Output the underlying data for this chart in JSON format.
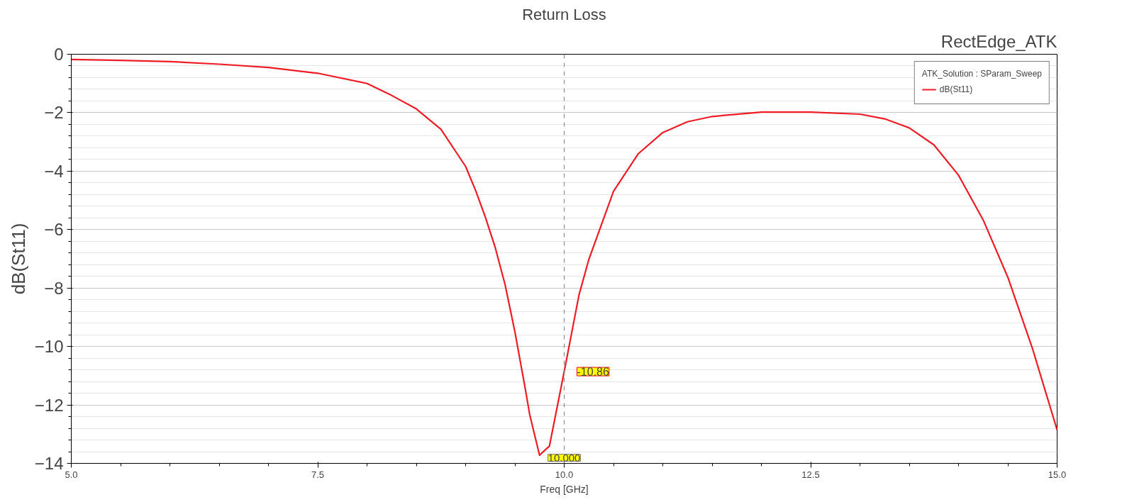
{
  "chart_data": {
    "type": "line",
    "title": "Return Loss",
    "subtitle": "RectEdge_ATK",
    "xlabel": "Freq [GHz]",
    "ylabel": "dB(St11)",
    "legend_title": "ATK_Solution : SParam_Sweep",
    "x": [
      5.0,
      5.5,
      6.0,
      6.5,
      7.0,
      7.5,
      8.0,
      8.25,
      8.5,
      8.75,
      9.0,
      9.1,
      9.2,
      9.3,
      9.4,
      9.5,
      9.6,
      9.65,
      9.75,
      9.85,
      10.0,
      10.15,
      10.25,
      10.5,
      10.75,
      11.0,
      11.25,
      11.5,
      12.0,
      12.5,
      13.0,
      13.25,
      13.5,
      13.75,
      14.0,
      14.25,
      14.5,
      14.75,
      15.0
    ],
    "series": [
      {
        "name": "dB(St11)",
        "color": "#ee1c25",
        "values": [
          -0.18,
          -0.21,
          -0.25,
          -0.34,
          -0.45,
          -0.65,
          -1.0,
          -1.41,
          -1.87,
          -2.57,
          -3.84,
          -4.65,
          -5.57,
          -6.61,
          -7.88,
          -9.5,
          -11.35,
          -12.33,
          -13.72,
          -13.41,
          -10.86,
          -8.24,
          -7.02,
          -4.69,
          -3.41,
          -2.68,
          -2.31,
          -2.13,
          -1.98,
          -1.98,
          -2.05,
          -2.21,
          -2.52,
          -3.1,
          -4.14,
          -5.67,
          -7.63,
          -10.07,
          -12.86
        ]
      }
    ],
    "xlim": [
      5,
      15
    ],
    "ylim": [
      -14,
      0
    ],
    "xticks": [
      {
        "value": 5,
        "label": "5.0"
      },
      {
        "value": 7.5,
        "label": "7.5"
      },
      {
        "value": 10,
        "label": "10.0"
      },
      {
        "value": 12.5,
        "label": "12.5"
      },
      {
        "value": 15,
        "label": "15.0"
      }
    ],
    "yticks": [
      -14,
      -12,
      -10,
      -8,
      -6,
      -4,
      -2,
      0
    ],
    "annotations": [
      {
        "text": "-10.86",
        "x": 10,
        "y": -10.86
      }
    ],
    "ref_lines": [
      {
        "axis": "x",
        "value": 10,
        "label": "10.000",
        "color": "#808080",
        "line_style": "dashed"
      }
    ],
    "grid": true,
    "legend": "top right",
    "marker": "none",
    "line_style": "solid"
  }
}
